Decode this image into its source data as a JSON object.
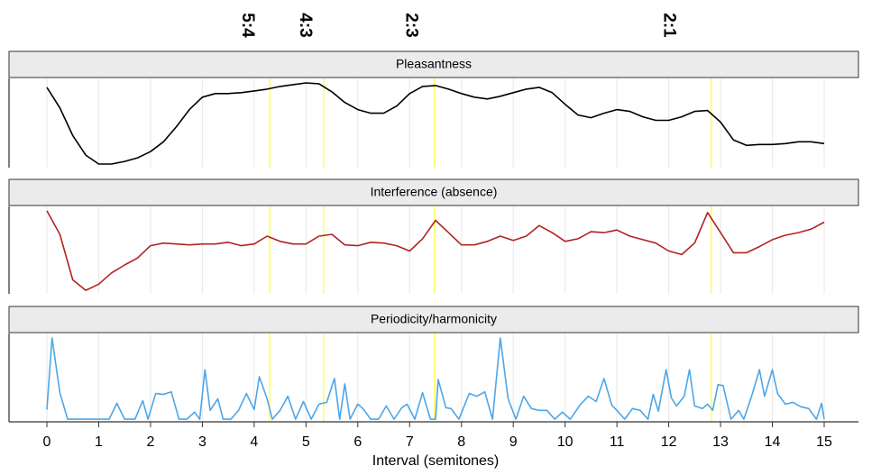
{
  "chart_data": [
    {
      "type": "line",
      "title": "Pleasantness",
      "color": "#000000",
      "annotations": [
        {
          "x": 3.86,
          "label": "5:4"
        },
        {
          "x": 4.98,
          "label": "4:3"
        },
        {
          "x": 7.02,
          "label": "2:3"
        },
        {
          "x": 12.0,
          "label": "2:1"
        }
      ],
      "reference_lines": [
        4.3,
        5.34,
        7.48,
        12.82
      ],
      "reference_color": "#ffff55",
      "xlim": [
        0,
        15
      ],
      "ylim": [
        0,
        1
      ],
      "xticks": [
        0,
        1,
        2,
        3,
        4,
        5,
        6,
        7,
        8,
        9,
        10,
        11,
        12,
        13,
        14,
        15
      ],
      "grid": true,
      "x": [
        0,
        0.25,
        0.5,
        0.75,
        1,
        1.25,
        1.5,
        1.75,
        2,
        2.25,
        2.5,
        2.75,
        3,
        3.25,
        3.5,
        3.75,
        4,
        4.25,
        4.5,
        4.75,
        5,
        5.25,
        5.5,
        5.75,
        6,
        6.25,
        6.5,
        6.75,
        7,
        7.25,
        7.5,
        7.75,
        8,
        8.25,
        8.5,
        8.75,
        9,
        9.25,
        9.5,
        9.75,
        10,
        10.25,
        10.5,
        10.75,
        11,
        11.25,
        11.5,
        11.75,
        12,
        12.25,
        12.5,
        12.75,
        13,
        13.25,
        13.5,
        13.75,
        14,
        14.25,
        14.5,
        14.75,
        15
      ],
      "values": [
        0.9,
        0.67,
        0.36,
        0.14,
        0.04,
        0.04,
        0.07,
        0.11,
        0.18,
        0.29,
        0.46,
        0.65,
        0.79,
        0.83,
        0.83,
        0.84,
        0.86,
        0.88,
        0.91,
        0.93,
        0.95,
        0.94,
        0.85,
        0.73,
        0.65,
        0.61,
        0.61,
        0.69,
        0.83,
        0.91,
        0.92,
        0.88,
        0.83,
        0.79,
        0.77,
        0.8,
        0.84,
        0.88,
        0.9,
        0.84,
        0.71,
        0.59,
        0.56,
        0.61,
        0.65,
        0.63,
        0.57,
        0.53,
        0.53,
        0.57,
        0.63,
        0.64,
        0.51,
        0.31,
        0.25,
        0.26,
        0.26,
        0.27,
        0.29,
        0.29,
        0.27
      ]
    },
    {
      "type": "line",
      "title": "Interference (absence)",
      "color": "#b22222",
      "reference_lines": [
        4.3,
        5.34,
        7.48,
        12.82
      ],
      "reference_color": "#ffff55",
      "xlim": [
        0,
        15
      ],
      "ylim": [
        0,
        1
      ],
      "xticks": [
        0,
        1,
        2,
        3,
        4,
        5,
        6,
        7,
        8,
        9,
        10,
        11,
        12,
        13,
        14,
        15
      ],
      "grid": true,
      "x": [
        0,
        0.25,
        0.5,
        0.75,
        1,
        1.25,
        1.5,
        1.75,
        2,
        2.25,
        2.5,
        2.75,
        3,
        3.25,
        3.5,
        3.75,
        4,
        4.25,
        4.5,
        4.75,
        5,
        5.25,
        5.5,
        5.75,
        6,
        6.25,
        6.5,
        6.75,
        7,
        7.25,
        7.5,
        7.75,
        8,
        8.25,
        8.5,
        8.75,
        9,
        9.25,
        9.5,
        9.75,
        10,
        10.25,
        10.5,
        10.75,
        11,
        11.25,
        11.5,
        11.75,
        12,
        12.25,
        12.5,
        12.75,
        13,
        13.25,
        13.5,
        13.75,
        14,
        14.25,
        14.5,
        14.75,
        15
      ],
      "values": [
        0.95,
        0.68,
        0.16,
        0.04,
        0.11,
        0.24,
        0.33,
        0.41,
        0.55,
        0.58,
        0.57,
        0.56,
        0.57,
        0.57,
        0.59,
        0.55,
        0.57,
        0.66,
        0.6,
        0.57,
        0.57,
        0.66,
        0.68,
        0.56,
        0.55,
        0.59,
        0.58,
        0.55,
        0.49,
        0.63,
        0.84,
        0.7,
        0.56,
        0.56,
        0.6,
        0.66,
        0.61,
        0.66,
        0.78,
        0.7,
        0.6,
        0.63,
        0.71,
        0.7,
        0.73,
        0.66,
        0.62,
        0.58,
        0.49,
        0.45,
        0.58,
        0.93,
        0.7,
        0.47,
        0.47,
        0.54,
        0.62,
        0.67,
        0.7,
        0.74,
        0.82
      ]
    },
    {
      "type": "line",
      "title": "Periodicity/harmonicity",
      "color": "#4da6e8",
      "reference_lines": [
        4.3,
        5.34,
        7.48,
        12.82
      ],
      "reference_color": "#ffff55",
      "xlim": [
        0,
        15
      ],
      "ylim": [
        0,
        1
      ],
      "grid": true,
      "xticks": [
        0,
        1,
        2,
        3,
        4,
        5,
        6,
        7,
        8,
        9,
        10,
        11,
        12,
        13,
        14,
        15
      ],
      "xlabel": "Interval (semitones)",
      "x": [
        0,
        0.1,
        0.25,
        0.4,
        0.8,
        1.2,
        1.35,
        1.5,
        1.7,
        1.85,
        1.95,
        2.1,
        2.25,
        2.4,
        2.55,
        2.7,
        2.85,
        2.95,
        3.05,
        3.15,
        3.3,
        3.4,
        3.55,
        3.7,
        3.85,
        4.0,
        4.1,
        4.25,
        4.35,
        4.5,
        4.65,
        4.8,
        4.95,
        5.1,
        5.25,
        5.4,
        5.55,
        5.65,
        5.75,
        5.85,
        6.0,
        6.1,
        6.25,
        6.4,
        6.55,
        6.7,
        6.85,
        6.95,
        7.1,
        7.25,
        7.4,
        7.5,
        7.55,
        7.7,
        7.8,
        7.95,
        8.15,
        8.3,
        8.45,
        8.6,
        8.75,
        8.9,
        9.05,
        9.2,
        9.35,
        9.5,
        9.65,
        9.8,
        9.95,
        10.1,
        10.3,
        10.45,
        10.6,
        10.75,
        10.9,
        11.0,
        11.15,
        11.3,
        11.45,
        11.6,
        11.7,
        11.8,
        11.95,
        12.05,
        12.15,
        12.3,
        12.4,
        12.5,
        12.65,
        12.75,
        12.85,
        12.95,
        13.05,
        13.2,
        13.35,
        13.45,
        13.6,
        13.75,
        13.85,
        14.0,
        14.1,
        14.25,
        14.4,
        14.55,
        14.7,
        14.85,
        14.95,
        15.0
      ],
      "values": [
        0.14,
        0.95,
        0.33,
        0.03,
        0.03,
        0.03,
        0.21,
        0.03,
        0.03,
        0.24,
        0.03,
        0.32,
        0.31,
        0.34,
        0.03,
        0.03,
        0.11,
        0.03,
        0.59,
        0.13,
        0.26,
        0.03,
        0.03,
        0.13,
        0.32,
        0.14,
        0.51,
        0.26,
        0.03,
        0.13,
        0.29,
        0.03,
        0.23,
        0.03,
        0.2,
        0.22,
        0.49,
        0.03,
        0.43,
        0.03,
        0.2,
        0.15,
        0.03,
        0.03,
        0.18,
        0.03,
        0.16,
        0.2,
        0.03,
        0.33,
        0.03,
        0.03,
        0.48,
        0.16,
        0.15,
        0.03,
        0.32,
        0.29,
        0.34,
        0.03,
        0.95,
        0.26,
        0.03,
        0.29,
        0.15,
        0.13,
        0.13,
        0.03,
        0.11,
        0.03,
        0.2,
        0.29,
        0.23,
        0.49,
        0.19,
        0.13,
        0.03,
        0.15,
        0.13,
        0.03,
        0.31,
        0.12,
        0.59,
        0.27,
        0.18,
        0.29,
        0.59,
        0.18,
        0.15,
        0.2,
        0.13,
        0.42,
        0.41,
        0.03,
        0.13,
        0.03,
        0.29,
        0.59,
        0.29,
        0.59,
        0.32,
        0.2,
        0.22,
        0.17,
        0.15,
        0.03,
        0.21,
        0.03
      ]
    }
  ]
}
